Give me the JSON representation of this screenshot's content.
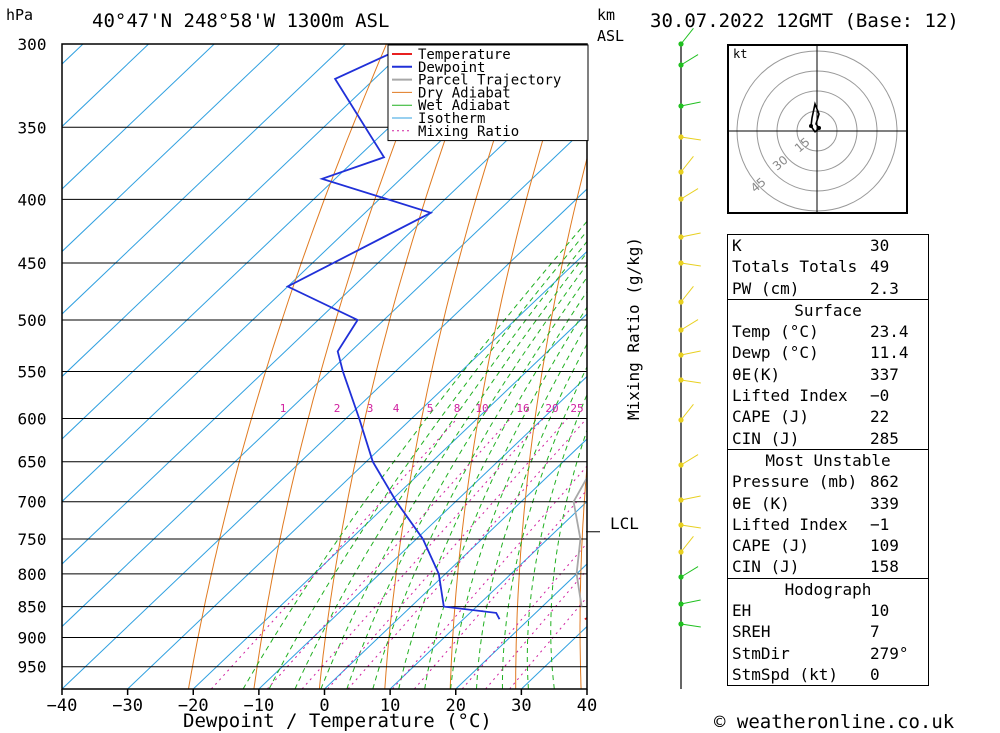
{
  "header": {
    "location": "40°47'N 248°58'W 1300m ASL",
    "run": "30.07.2022 12GMT (Base: 12)",
    "pressure_unit": "hPa",
    "height_unit_1": "km",
    "height_unit_2": "ASL",
    "lcl_label": "LCL",
    "mixing_ratio_axis": "Mixing Ratio (g/kg)",
    "xlabel": "Dewpoint / Temperature (°C)",
    "copyright": "© weatheronline.co.uk"
  },
  "colors": {
    "temperature": "#e82020",
    "dewpoint": "#2030d8",
    "parcel": "#a8a8a8",
    "dry_adiabat": "#e07a20",
    "wet_adiabat": "#20b020",
    "isotherm": "#30a0e0",
    "mixing_ratio": "#d020a0",
    "wind_lower": "#20c020",
    "wind_upper": "#e8d020"
  },
  "chart_data": {
    "type": "line",
    "title": "",
    "xlabel": "Dewpoint / Temperature (°C)",
    "ylabel": "hPa",
    "xlim": [
      -40,
      40
    ],
    "ylim": [
      1000,
      300
    ],
    "y_scale": "log-pressure",
    "x_ticks": [
      "−40",
      "−30",
      "−20",
      "−10",
      "0",
      "10",
      "20",
      "30",
      "40"
    ],
    "pressure_ticks": [
      300,
      350,
      400,
      450,
      500,
      550,
      600,
      650,
      700,
      750,
      800,
      850,
      900,
      950
    ],
    "legend": {
      "placement": "top-right",
      "entries": [
        "Temperature",
        "Dewpoint",
        "Parcel Trajectory",
        "Dry Adiabat",
        "Wet Adiabat",
        "Isotherm",
        "Mixing Ratio"
      ]
    },
    "mixing_ratio_labels": [
      "1",
      "2",
      "3",
      "4",
      "5",
      "8",
      "10",
      "16",
      "20",
      "25"
    ],
    "series": [
      {
        "name": "Temperature",
        "points": [
          [
            28.5,
            870
          ],
          [
            29.5,
            860
          ],
          [
            24.5,
            800
          ],
          [
            20,
            750
          ],
          [
            17,
            700
          ],
          [
            10,
            620
          ],
          [
            4,
            550
          ],
          [
            1,
            500
          ],
          [
            -1,
            470
          ],
          [
            -8,
            400
          ],
          [
            -14,
            350
          ],
          [
            -24,
            300
          ]
        ]
      },
      {
        "name": "Dewpoint",
        "points": [
          [
            15.5,
            870
          ],
          [
            14,
            860
          ],
          [
            5,
            850
          ],
          [
            -1,
            800
          ],
          [
            -9,
            750
          ],
          [
            -19,
            700
          ],
          [
            -29,
            650
          ],
          [
            -38,
            600
          ],
          [
            -48,
            550
          ],
          [
            -52,
            530
          ],
          [
            -54,
            500
          ],
          [
            -70,
            470
          ],
          [
            -60,
            410
          ],
          [
            -82,
            385
          ],
          [
            -76,
            370
          ],
          [
            -96,
            320
          ],
          [
            -90,
            300
          ]
        ]
      },
      {
        "name": "Parcel Trajectory",
        "points": [
          [
            26,
            850
          ],
          [
            20,
            800
          ],
          [
            15,
            750
          ],
          [
            8,
            700
          ],
          [
            5,
            650
          ],
          [
            1,
            600
          ],
          [
            0,
            550
          ],
          [
            -3,
            520
          ],
          [
            -8,
            460
          ],
          [
            -11,
            400
          ],
          [
            -14,
            350
          ],
          [
            -21,
            300
          ]
        ]
      }
    ]
  },
  "hodograph": {
    "unit_label": "kt",
    "ring_labels": [
      "15",
      "30",
      "45"
    ]
  },
  "indices": [
    {
      "title": "",
      "rows": [
        {
          "label": "K",
          "value": "30"
        },
        {
          "label": "Totals Totals",
          "value": "49"
        },
        {
          "label": "PW (cm)",
          "value": "2.3"
        }
      ]
    },
    {
      "title": "Surface",
      "rows": [
        {
          "label": "Temp (°C)",
          "value": "23.4"
        },
        {
          "label": "Dewp (°C)",
          "value": "11.4"
        },
        {
          "label": "θE(K)",
          "value": "337"
        },
        {
          "label": "Lifted Index",
          "value": "−0"
        },
        {
          "label": "CAPE (J)",
          "value": "22"
        },
        {
          "label": "CIN (J)",
          "value": "285"
        }
      ]
    },
    {
      "title": "Most Unstable",
      "rows": [
        {
          "label": "Pressure (mb)",
          "value": "862"
        },
        {
          "label": "θE (K)",
          "value": "339"
        },
        {
          "label": "Lifted Index",
          "value": "−1"
        },
        {
          "label": "CAPE (J)",
          "value": "109"
        },
        {
          "label": "CIN (J)",
          "value": "158"
        }
      ]
    },
    {
      "title": "Hodograph",
      "rows": [
        {
          "label": "EH",
          "value": "10"
        },
        {
          "label": "SREH",
          "value": "7"
        },
        {
          "label": "StmDir",
          "value": "279°"
        },
        {
          "label": "StmSpd (kt)",
          "value": "0"
        }
      ]
    }
  ]
}
